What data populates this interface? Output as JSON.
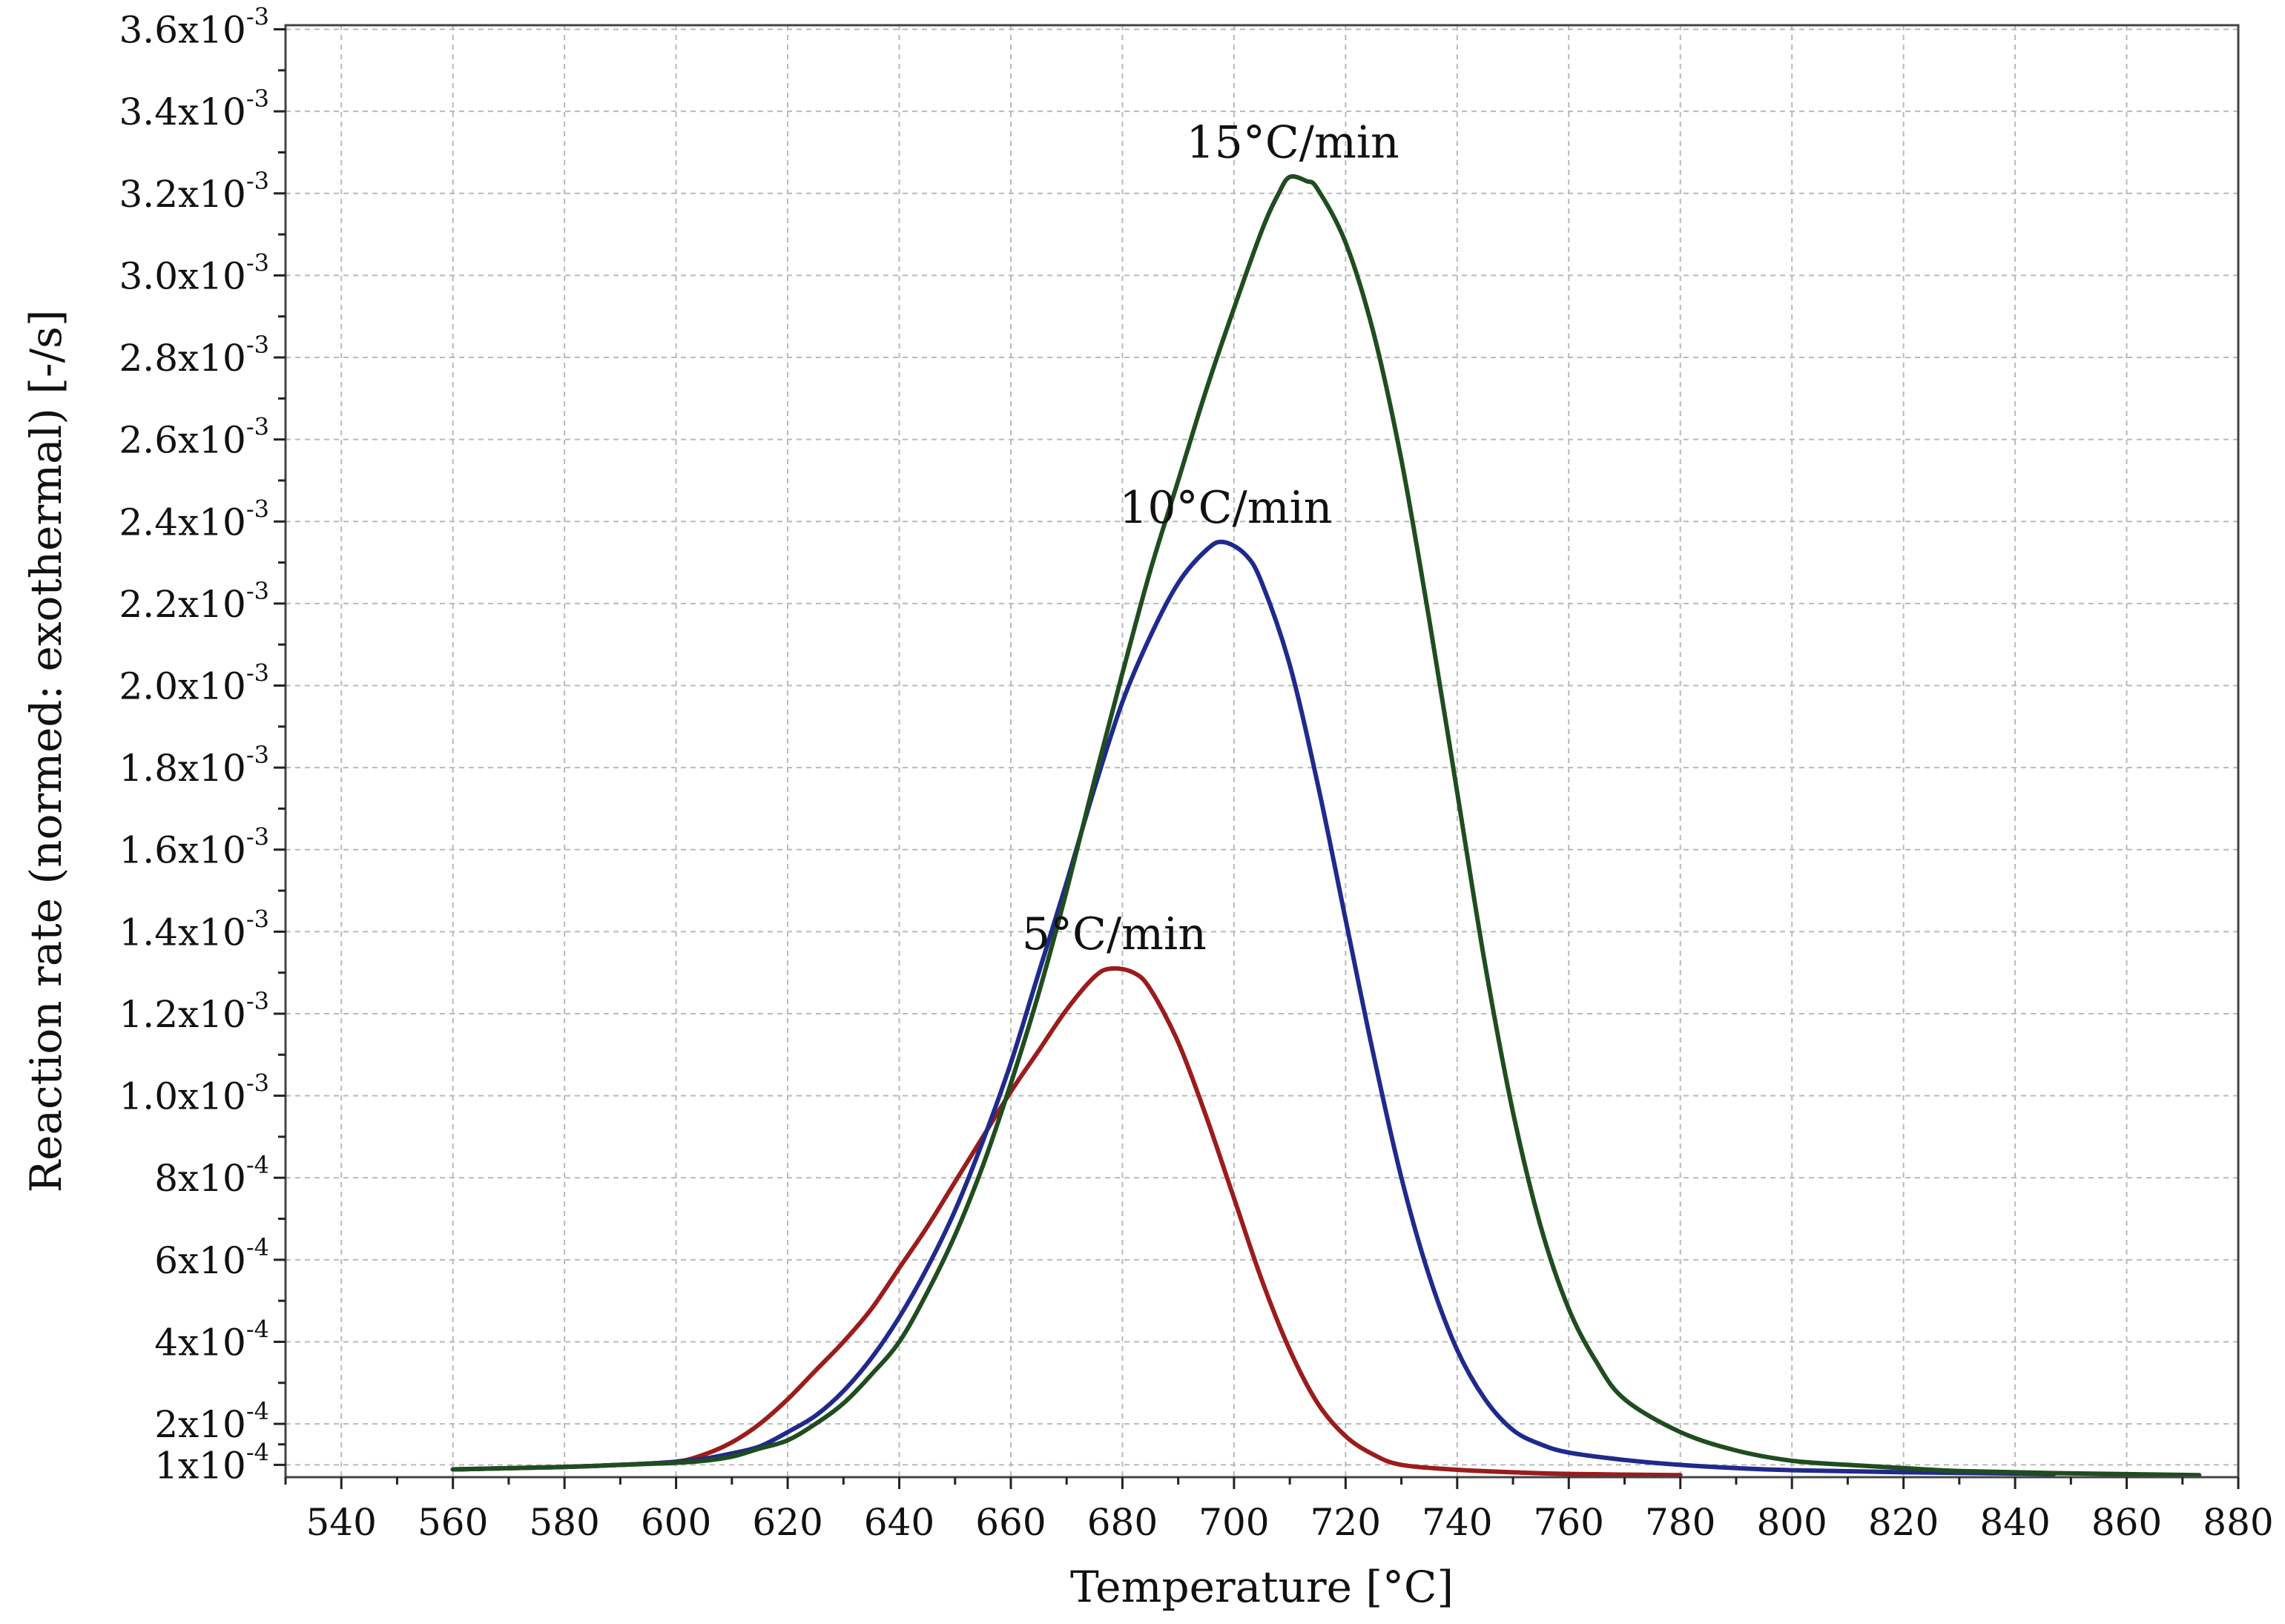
{
  "chart_data": {
    "type": "line",
    "title": "",
    "xlabel": "Temperature [°C]",
    "ylabel": "Reaction rate (normed: exothermal) [-/s]",
    "xlim": [
      530,
      880
    ],
    "ylim": [
      7e-05,
      0.00361
    ],
    "x_ticks": [
      540,
      560,
      580,
      600,
      620,
      640,
      660,
      680,
      700,
      720,
      740,
      760,
      780,
      800,
      820,
      840,
      860,
      880
    ],
    "y_ticks": [
      {
        "value": 0.0001,
        "mantissa": "1x10",
        "exp": "-4"
      },
      {
        "value": 0.0002,
        "mantissa": "2x10",
        "exp": "-4"
      },
      {
        "value": 0.0004,
        "mantissa": "4x10",
        "exp": "-4"
      },
      {
        "value": 0.0006,
        "mantissa": "6x10",
        "exp": "-4"
      },
      {
        "value": 0.0008,
        "mantissa": "8x10",
        "exp": "-4"
      },
      {
        "value": 0.001,
        "mantissa": "1.0x10",
        "exp": "-3"
      },
      {
        "value": 0.0012,
        "mantissa": "1.2x10",
        "exp": "-3"
      },
      {
        "value": 0.0014,
        "mantissa": "1.4x10",
        "exp": "-3"
      },
      {
        "value": 0.0016,
        "mantissa": "1.6x10",
        "exp": "-3"
      },
      {
        "value": 0.0018,
        "mantissa": "1.8x10",
        "exp": "-3"
      },
      {
        "value": 0.002,
        "mantissa": "2.0x10",
        "exp": "-3"
      },
      {
        "value": 0.0022,
        "mantissa": "2.2x10",
        "exp": "-3"
      },
      {
        "value": 0.0024,
        "mantissa": "2.4x10",
        "exp": "-3"
      },
      {
        "value": 0.0026,
        "mantissa": "2.6x10",
        "exp": "-3"
      },
      {
        "value": 0.0028,
        "mantissa": "2.8x10",
        "exp": "-3"
      },
      {
        "value": 0.003,
        "mantissa": "3.0x10",
        "exp": "-3"
      },
      {
        "value": 0.0032,
        "mantissa": "3.2x10",
        "exp": "-3"
      },
      {
        "value": 0.0034,
        "mantissa": "3.4x10",
        "exp": "-3"
      },
      {
        "value": 0.0036,
        "mantissa": "3.6x10",
        "exp": "-3"
      }
    ],
    "grid": true,
    "series": [
      {
        "name": "5°C/min",
        "color": "#9b1c1c",
        "x": [
          560,
          580,
          590,
          600,
          605,
          610,
          615,
          620,
          625,
          630,
          635,
          640,
          645,
          650,
          655,
          660,
          665,
          670,
          675,
          678,
          682,
          685,
          690,
          695,
          700,
          705,
          710,
          715,
          720,
          725,
          730,
          740,
          750,
          760,
          780
        ],
        "y": [
          8.9e-05,
          9.5e-05,
          0.0001,
          0.000108,
          0.000125,
          0.000155,
          0.0002,
          0.00026,
          0.00033,
          0.0004,
          0.00048,
          0.00058,
          0.00068,
          0.00079,
          0.0009,
          0.00101,
          0.00111,
          0.00121,
          0.00129,
          0.00131,
          0.0013,
          0.00126,
          0.00113,
          0.00095,
          0.00075,
          0.00055,
          0.00038,
          0.00025,
          0.00017,
          0.000125,
          0.0001,
          8.8e-05,
          8.2e-05,
          7.8e-05,
          7.5e-05
        ]
      },
      {
        "name": "10°C/min",
        "color": "#1f2a8c",
        "x": [
          560,
          580,
          590,
          600,
          605,
          610,
          615,
          620,
          625,
          630,
          635,
          640,
          645,
          650,
          655,
          660,
          665,
          670,
          675,
          680,
          685,
          690,
          695,
          698,
          702,
          705,
          710,
          715,
          720,
          725,
          730,
          735,
          740,
          745,
          750,
          755,
          760,
          770,
          780,
          790,
          800,
          820,
          847
        ],
        "y": [
          8.9e-05,
          9.5e-05,
          0.0001,
          0.000107,
          0.000115,
          0.000128,
          0.000145,
          0.00018,
          0.00022,
          0.00028,
          0.00036,
          0.00046,
          0.00058,
          0.00072,
          0.00089,
          0.00108,
          0.0013,
          0.00152,
          0.00175,
          0.00196,
          0.00212,
          0.00225,
          0.00233,
          0.00235,
          0.00232,
          0.00225,
          0.00205,
          0.00176,
          0.00143,
          0.0011,
          0.0008,
          0.00056,
          0.00038,
          0.00026,
          0.000185,
          0.00015,
          0.00013,
          0.000112,
          0.0001,
          9.2e-05,
          8.7e-05,
          8.2e-05,
          7.8e-05
        ]
      },
      {
        "name": "15°C/min",
        "color": "#1f4d1f",
        "x": [
          560,
          580,
          590,
          600,
          605,
          610,
          615,
          620,
          625,
          630,
          635,
          640,
          645,
          650,
          655,
          660,
          665,
          670,
          675,
          680,
          685,
          690,
          695,
          700,
          705,
          708,
          710,
          713,
          715,
          720,
          725,
          730,
          735,
          740,
          745,
          750,
          755,
          760,
          765,
          770,
          780,
          790,
          800,
          810,
          820,
          830,
          847,
          873
        ],
        "y": [
          8.9e-05,
          9.5e-05,
          0.0001,
          0.000105,
          0.00011,
          0.00012,
          0.00014,
          0.00016,
          0.0002,
          0.00025,
          0.00032,
          0.0004,
          0.00052,
          0.00066,
          0.00083,
          0.00103,
          0.00125,
          0.0015,
          0.00177,
          0.00203,
          0.00228,
          0.0025,
          0.00272,
          0.00292,
          0.00311,
          0.0032,
          0.00324,
          0.00323,
          0.00321,
          0.00308,
          0.00286,
          0.00255,
          0.00216,
          0.00174,
          0.00132,
          0.00096,
          0.00068,
          0.00048,
          0.00035,
          0.00026,
          0.00018,
          0.000135,
          0.00011,
          0.0001,
          9.2e-05,
          8.5e-05,
          8e-05,
          7.5e-05
        ]
      }
    ],
    "annotations": [
      {
        "text": "15°C/min",
        "series": "15°C/min"
      },
      {
        "text": "10°C/min",
        "series": "10°C/min"
      },
      {
        "text": "5°C/min",
        "series": "5°C/min"
      }
    ]
  }
}
